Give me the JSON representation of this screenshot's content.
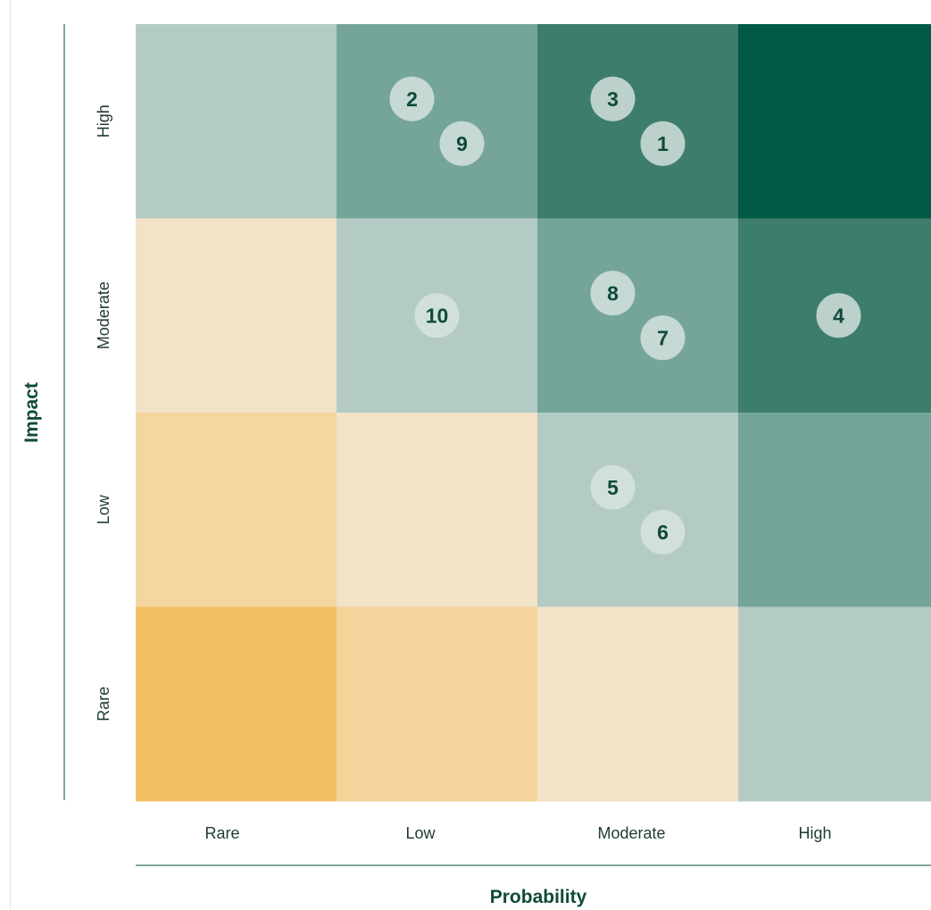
{
  "chart_data": {
    "type": "heatmap",
    "title": "",
    "xlabel": "Probability",
    "ylabel": "Impact",
    "x_categories": [
      "Rare",
      "Low",
      "Moderate",
      "High"
    ],
    "y_categories": [
      "Rare",
      "Low",
      "Moderate",
      "High"
    ],
    "cells": [
      {
        "x": "Rare",
        "y": "High",
        "color": "#b3cbc4"
      },
      {
        "x": "Low",
        "y": "High",
        "color": "#75a59a"
      },
      {
        "x": "Moderate",
        "y": "High",
        "color": "#3d7d6c"
      },
      {
        "x": "High",
        "y": "High",
        "color": "#025a46"
      },
      {
        "x": "Rare",
        "y": "Moderate",
        "color": "#f2e2c8"
      },
      {
        "x": "Low",
        "y": "Moderate",
        "color": "#b4cbc5"
      },
      {
        "x": "Moderate",
        "y": "Moderate",
        "color": "#75a59a"
      },
      {
        "x": "High",
        "y": "Moderate",
        "color": "#3d7d6c"
      },
      {
        "x": "Rare",
        "y": "Low",
        "color": "#f4d69f"
      },
      {
        "x": "Low",
        "y": "Low",
        "color": "#f2e2c8"
      },
      {
        "x": "Moderate",
        "y": "Low",
        "color": "#b4cbc5"
      },
      {
        "x": "High",
        "y": "Low",
        "color": "#75a59a"
      },
      {
        "x": "Rare",
        "y": "Rare",
        "color": "#f4bf63"
      },
      {
        "x": "Low",
        "y": "Rare",
        "color": "#f4d49b"
      },
      {
        "x": "Moderate",
        "y": "Rare",
        "color": "#f2e2c8"
      },
      {
        "x": "High",
        "y": "Rare",
        "color": "#b4cbc5"
      }
    ],
    "points": [
      {
        "label": "2",
        "probability": "Low",
        "impact": "High"
      },
      {
        "label": "9",
        "probability": "Low",
        "impact": "High"
      },
      {
        "label": "3",
        "probability": "Moderate",
        "impact": "High"
      },
      {
        "label": "1",
        "probability": "Moderate",
        "impact": "High"
      },
      {
        "label": "10",
        "probability": "Low",
        "impact": "Moderate"
      },
      {
        "label": "8",
        "probability": "Moderate",
        "impact": "Moderate"
      },
      {
        "label": "7",
        "probability": "Moderate",
        "impact": "Moderate"
      },
      {
        "label": "4",
        "probability": "High",
        "impact": "Moderate"
      },
      {
        "label": "5",
        "probability": "Moderate",
        "impact": "Low"
      },
      {
        "label": "6",
        "probability": "Moderate",
        "impact": "Low"
      }
    ],
    "grid": false,
    "legend": "none",
    "colors": {
      "axis_line": "#7fa79c",
      "marker_fill": "#d8e4e0",
      "marker_text": "#0f4a3a"
    }
  }
}
